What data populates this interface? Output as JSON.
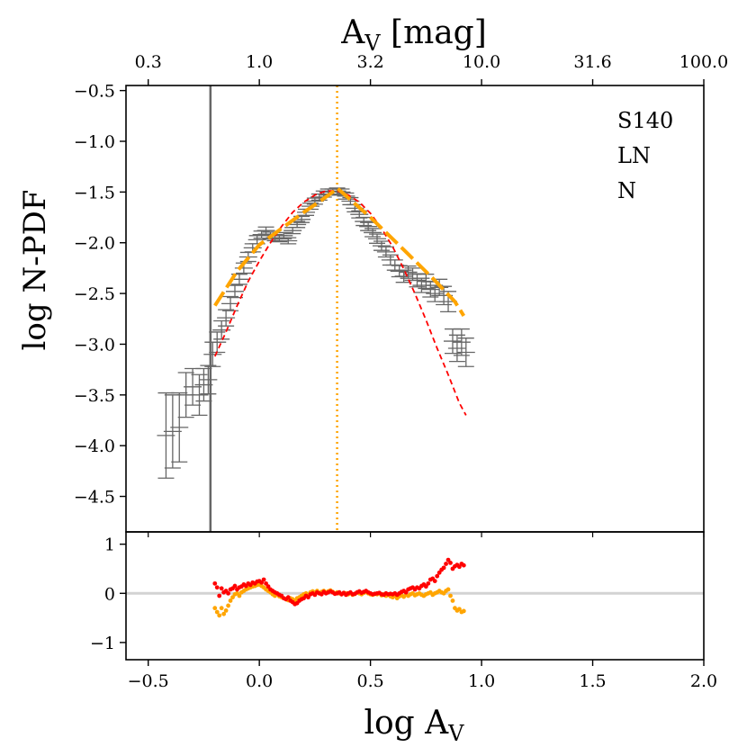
{
  "chart_data": {
    "type": "scatter",
    "top_axis": {
      "label": "A",
      "label_sub": "V",
      "label_suffix": " [mag]",
      "tick_labels": [
        "0.3",
        "1.0",
        "3.2",
        "10.0",
        "31.6",
        "100.0"
      ],
      "tick_values_log": [
        -0.5,
        0.0,
        0.5,
        1.0,
        1.5,
        2.0
      ]
    },
    "main_panel": {
      "ylabel": "log N-PDF",
      "ylim": [
        -4.85,
        -0.45
      ],
      "yticks": [
        -0.5,
        -1.0,
        -1.5,
        -2.0,
        -2.5,
        -3.0,
        -3.5,
        -4.0,
        -4.5
      ],
      "ytick_labels": [
        "−0.5",
        "−1.0",
        "−1.5",
        "−2.0",
        "−2.5",
        "−3.0",
        "−3.5",
        "−4.0",
        "−4.5"
      ],
      "annotations": [
        "S140",
        "LN",
        "N"
      ],
      "vline_completeness": -0.22,
      "vline_peak": 0.35,
      "colors": {
        "data": "#666666",
        "lognormal": "#ff0000",
        "powerlaw": "#ffa500"
      },
      "data_points": [
        [
          -0.42,
          -3.9,
          0.42
        ],
        [
          -0.39,
          -3.86,
          0.36
        ],
        [
          -0.36,
          -3.82,
          0.34
        ],
        [
          -0.33,
          -3.5,
          0.22
        ],
        [
          -0.3,
          -3.42,
          0.18
        ],
        [
          -0.27,
          -3.5,
          0.2
        ],
        [
          -0.25,
          -3.4,
          0.16
        ],
        [
          -0.23,
          -3.35,
          0.14
        ],
        [
          -0.21,
          -3.1,
          0.12
        ],
        [
          -0.19,
          -2.98,
          0.1
        ],
        [
          -0.17,
          -2.86,
          0.09
        ],
        [
          -0.15,
          -2.74,
          0.08
        ],
        [
          -0.13,
          -2.6,
          0.07
        ],
        [
          -0.11,
          -2.48,
          0.06
        ],
        [
          -0.09,
          -2.36,
          0.05
        ],
        [
          -0.07,
          -2.25,
          0.05
        ],
        [
          -0.05,
          -2.14,
          0.045
        ],
        [
          -0.03,
          -2.05,
          0.04
        ],
        [
          -0.01,
          -1.97,
          0.04
        ],
        [
          0.01,
          -1.92,
          0.035
        ],
        [
          0.03,
          -1.88,
          0.035
        ],
        [
          0.05,
          -1.93,
          0.035
        ],
        [
          0.07,
          -1.95,
          0.03
        ],
        [
          0.09,
          -1.96,
          0.03
        ],
        [
          0.11,
          -1.93,
          0.03
        ],
        [
          0.13,
          -1.98,
          0.03
        ],
        [
          0.15,
          -1.88,
          0.03
        ],
        [
          0.17,
          -1.82,
          0.03
        ],
        [
          0.19,
          -1.77,
          0.03
        ],
        [
          0.21,
          -1.7,
          0.03
        ],
        [
          0.23,
          -1.64,
          0.03
        ],
        [
          0.25,
          -1.59,
          0.03
        ],
        [
          0.27,
          -1.55,
          0.03
        ],
        [
          0.29,
          -1.52,
          0.03
        ],
        [
          0.31,
          -1.5,
          0.03
        ],
        [
          0.33,
          -1.5,
          0.03
        ],
        [
          0.35,
          -1.49,
          0.03
        ],
        [
          0.37,
          -1.5,
          0.03
        ],
        [
          0.39,
          -1.54,
          0.03
        ],
        [
          0.41,
          -1.59,
          0.035
        ],
        [
          0.43,
          -1.66,
          0.035
        ],
        [
          0.45,
          -1.72,
          0.035
        ],
        [
          0.47,
          -1.79,
          0.04
        ],
        [
          0.49,
          -1.84,
          0.04
        ],
        [
          0.51,
          -1.9,
          0.04
        ],
        [
          0.53,
          -1.96,
          0.045
        ],
        [
          0.55,
          -2.03,
          0.045
        ],
        [
          0.57,
          -2.09,
          0.05
        ],
        [
          0.59,
          -2.17,
          0.05
        ],
        [
          0.61,
          -2.22,
          0.05
        ],
        [
          0.63,
          -2.28,
          0.055
        ],
        [
          0.65,
          -2.33,
          0.06
        ],
        [
          0.67,
          -2.29,
          0.06
        ],
        [
          0.69,
          -2.31,
          0.06
        ],
        [
          0.71,
          -2.37,
          0.065
        ],
        [
          0.73,
          -2.42,
          0.07
        ],
        [
          0.75,
          -2.38,
          0.07
        ],
        [
          0.77,
          -2.46,
          0.075
        ],
        [
          0.79,
          -2.5,
          0.08
        ],
        [
          0.81,
          -2.44,
          0.08
        ],
        [
          0.83,
          -2.52,
          0.09
        ],
        [
          0.85,
          -2.58,
          0.1
        ],
        [
          0.87,
          -2.97,
          0.12
        ],
        [
          0.89,
          -3.04,
          0.13
        ],
        [
          0.91,
          -2.98,
          0.13
        ],
        [
          0.93,
          -3.08,
          0.14
        ]
      ],
      "lognormal_fit": {
        "x": [
          -0.2,
          -0.15,
          -0.1,
          -0.05,
          0.0,
          0.05,
          0.1,
          0.15,
          0.2,
          0.25,
          0.3,
          0.35,
          0.4,
          0.45,
          0.5,
          0.55,
          0.6,
          0.65,
          0.7,
          0.75,
          0.8,
          0.85,
          0.9,
          0.93
        ],
        "y": [
          -3.12,
          -2.88,
          -2.62,
          -2.38,
          -2.18,
          -2.0,
          -1.84,
          -1.7,
          -1.6,
          -1.53,
          -1.49,
          -1.49,
          -1.53,
          -1.6,
          -1.71,
          -1.86,
          -2.04,
          -2.26,
          -2.5,
          -2.76,
          -3.04,
          -3.3,
          -3.58,
          -3.7
        ]
      },
      "powerlaw_fit": {
        "x": [
          -0.2,
          -0.1,
          0.0,
          0.1,
          0.2,
          0.28,
          0.33,
          0.35,
          0.5,
          0.65,
          0.78,
          0.88,
          0.92
        ],
        "y": [
          -2.62,
          -2.28,
          -2.02,
          -1.86,
          -1.7,
          -1.58,
          -1.5,
          -1.46,
          -1.75,
          -2.07,
          -2.35,
          -2.58,
          -2.72
        ]
      }
    },
    "residual_panel": {
      "ylim": [
        -1.35,
        1.25
      ],
      "yticks": [
        1,
        0,
        -1
      ],
      "ytick_labels": [
        "1",
        "0",
        "−1"
      ],
      "lognormal_residuals": [
        [
          -0.2,
          0.2
        ],
        [
          -0.19,
          0.12
        ],
        [
          -0.18,
          -0.05
        ],
        [
          -0.17,
          0.1
        ],
        [
          -0.16,
          0.02
        ],
        [
          -0.15,
          0.05
        ],
        [
          -0.14,
          0.0
        ],
        [
          -0.13,
          0.08
        ],
        [
          -0.12,
          0.1
        ],
        [
          -0.11,
          0.15
        ],
        [
          -0.1,
          0.08
        ],
        [
          -0.09,
          0.12
        ],
        [
          -0.08,
          0.14
        ],
        [
          -0.07,
          0.18
        ],
        [
          -0.06,
          0.15
        ],
        [
          -0.05,
          0.2
        ],
        [
          -0.04,
          0.17
        ],
        [
          -0.03,
          0.22
        ],
        [
          -0.02,
          0.2
        ],
        [
          -0.01,
          0.24
        ],
        [
          0.0,
          0.25
        ],
        [
          0.01,
          0.22
        ],
        [
          0.02,
          0.28
        ],
        [
          0.03,
          0.2
        ],
        [
          0.04,
          0.14
        ],
        [
          0.05,
          0.08
        ],
        [
          0.06,
          0.05
        ],
        [
          0.07,
          0.02
        ],
        [
          0.08,
          0.0
        ],
        [
          0.09,
          -0.03
        ],
        [
          0.1,
          -0.05
        ],
        [
          0.11,
          -0.1
        ],
        [
          0.12,
          -0.12
        ],
        [
          0.13,
          -0.08
        ],
        [
          0.14,
          -0.15
        ],
        [
          0.15,
          -0.18
        ],
        [
          0.16,
          -0.22
        ],
        [
          0.17,
          -0.2
        ],
        [
          0.18,
          -0.15
        ],
        [
          0.19,
          -0.12
        ],
        [
          0.2,
          -0.1
        ],
        [
          0.21,
          -0.05
        ],
        [
          0.22,
          -0.08
        ],
        [
          0.23,
          -0.02
        ],
        [
          0.24,
          0.0
        ],
        [
          0.25,
          -0.03
        ],
        [
          0.26,
          0.02
        ],
        [
          0.27,
          0.0
        ],
        [
          0.28,
          -0.02
        ],
        [
          0.29,
          0.03
        ],
        [
          0.3,
          0.0
        ],
        [
          0.31,
          0.02
        ],
        [
          0.32,
          0.04
        ],
        [
          0.33,
          0.02
        ],
        [
          0.34,
          -0.01
        ],
        [
          0.35,
          0.0
        ],
        [
          0.36,
          0.02
        ],
        [
          0.37,
          -0.02
        ],
        [
          0.38,
          0.01
        ],
        [
          0.39,
          -0.03
        ],
        [
          0.4,
          0.0
        ],
        [
          0.41,
          0.02
        ],
        [
          0.42,
          -0.02
        ],
        [
          0.43,
          -0.01
        ],
        [
          0.44,
          0.02
        ],
        [
          0.45,
          0.04
        ],
        [
          0.46,
          0.01
        ],
        [
          0.47,
          0.03
        ],
        [
          0.48,
          0.05
        ],
        [
          0.49,
          0.02
        ],
        [
          0.5,
          0.0
        ],
        [
          0.51,
          -0.02
        ],
        [
          0.52,
          -0.01
        ],
        [
          0.53,
          0.0
        ],
        [
          0.54,
          0.01
        ],
        [
          0.55,
          -0.02
        ],
        [
          0.56,
          -0.03
        ],
        [
          0.57,
          0.0
        ],
        [
          0.58,
          -0.02
        ],
        [
          0.59,
          -0.01
        ],
        [
          0.6,
          -0.02
        ],
        [
          0.61,
          0.0
        ],
        [
          0.62,
          -0.03
        ],
        [
          0.63,
          0.0
        ],
        [
          0.64,
          0.03
        ],
        [
          0.65,
          0.05
        ],
        [
          0.66,
          0.02
        ],
        [
          0.67,
          0.08
        ],
        [
          0.68,
          0.1
        ],
        [
          0.69,
          0.12
        ],
        [
          0.7,
          0.08
        ],
        [
          0.71,
          0.12
        ],
        [
          0.72,
          0.1
        ],
        [
          0.73,
          0.15
        ],
        [
          0.74,
          0.18
        ],
        [
          0.75,
          0.14
        ],
        [
          0.76,
          0.2
        ],
        [
          0.77,
          0.28
        ],
        [
          0.78,
          0.3
        ],
        [
          0.79,
          0.25
        ],
        [
          0.8,
          0.35
        ],
        [
          0.81,
          0.42
        ],
        [
          0.82,
          0.48
        ],
        [
          0.83,
          0.52
        ],
        [
          0.84,
          0.6
        ],
        [
          0.85,
          0.68
        ],
        [
          0.86,
          0.62
        ],
        [
          0.87,
          0.5
        ],
        [
          0.88,
          0.55
        ],
        [
          0.89,
          0.58
        ],
        [
          0.9,
          0.54
        ],
        [
          0.91,
          0.6
        ],
        [
          0.92,
          0.57
        ]
      ],
      "powerlaw_residuals": [
        [
          -0.2,
          -0.3
        ],
        [
          -0.19,
          -0.38
        ],
        [
          -0.18,
          -0.45
        ],
        [
          -0.17,
          -0.3
        ],
        [
          -0.16,
          -0.42
        ],
        [
          -0.15,
          -0.35
        ],
        [
          -0.14,
          -0.25
        ],
        [
          -0.13,
          -0.15
        ],
        [
          -0.12,
          -0.08
        ],
        [
          -0.11,
          -0.02
        ],
        [
          -0.1,
          0.0
        ],
        [
          -0.09,
          -0.05
        ],
        [
          -0.08,
          0.02
        ],
        [
          -0.07,
          0.05
        ],
        [
          -0.06,
          0.08
        ],
        [
          -0.05,
          0.1
        ],
        [
          -0.04,
          0.12
        ],
        [
          -0.03,
          0.14
        ],
        [
          -0.02,
          0.15
        ],
        [
          -0.01,
          0.17
        ],
        [
          0.0,
          0.18
        ],
        [
          0.01,
          0.15
        ],
        [
          0.02,
          0.12
        ],
        [
          0.03,
          0.08
        ],
        [
          0.04,
          0.05
        ],
        [
          0.05,
          0.02
        ],
        [
          0.06,
          -0.02
        ],
        [
          0.07,
          -0.05
        ],
        [
          0.08,
          -0.02
        ],
        [
          0.09,
          -0.06
        ],
        [
          0.1,
          -0.08
        ],
        [
          0.11,
          -0.1
        ],
        [
          0.12,
          -0.12
        ],
        [
          0.13,
          -0.14
        ],
        [
          0.14,
          -0.1
        ],
        [
          0.15,
          -0.12
        ],
        [
          0.16,
          -0.15
        ],
        [
          0.17,
          -0.1
        ],
        [
          0.18,
          -0.08
        ],
        [
          0.19,
          -0.05
        ],
        [
          0.2,
          -0.02
        ],
        [
          0.21,
          0.0
        ],
        [
          0.22,
          -0.04
        ],
        [
          0.23,
          0.02
        ],
        [
          0.24,
          0.04
        ],
        [
          0.25,
          0.02
        ],
        [
          0.26,
          0.05
        ],
        [
          0.27,
          0.0
        ],
        [
          0.28,
          0.03
        ],
        [
          0.29,
          0.05
        ],
        [
          0.3,
          0.02
        ],
        [
          0.31,
          0.04
        ],
        [
          0.32,
          0.06
        ],
        [
          0.33,
          0.03
        ],
        [
          0.34,
          0.0
        ],
        [
          0.35,
          0.02
        ],
        [
          0.36,
          0.0
        ],
        [
          0.37,
          -0.02
        ],
        [
          0.38,
          0.01
        ],
        [
          0.39,
          0.0
        ],
        [
          0.4,
          -0.02
        ],
        [
          0.41,
          0.0
        ],
        [
          0.42,
          -0.03
        ],
        [
          0.43,
          -0.01
        ],
        [
          0.44,
          0.02
        ],
        [
          0.45,
          0.0
        ],
        [
          0.46,
          -0.02
        ],
        [
          0.47,
          0.01
        ],
        [
          0.48,
          0.03
        ],
        [
          0.49,
          0.0
        ],
        [
          0.5,
          -0.02
        ],
        [
          0.51,
          -0.03
        ],
        [
          0.52,
          -0.01
        ],
        [
          0.53,
          -0.02
        ],
        [
          0.54,
          0.0
        ],
        [
          0.55,
          -0.04
        ],
        [
          0.56,
          -0.02
        ],
        [
          0.57,
          -0.05
        ],
        [
          0.58,
          -0.03
        ],
        [
          0.59,
          -0.06
        ],
        [
          0.6,
          -0.08
        ],
        [
          0.61,
          -0.05
        ],
        [
          0.62,
          -0.1
        ],
        [
          0.63,
          -0.06
        ],
        [
          0.64,
          -0.04
        ],
        [
          0.65,
          -0.07
        ],
        [
          0.66,
          -0.03
        ],
        [
          0.67,
          -0.05
        ],
        [
          0.68,
          -0.02
        ],
        [
          0.69,
          0.0
        ],
        [
          0.7,
          -0.04
        ],
        [
          0.71,
          -0.02
        ],
        [
          0.72,
          0.0
        ],
        [
          0.73,
          -0.03
        ],
        [
          0.74,
          -0.05
        ],
        [
          0.75,
          -0.02
        ],
        [
          0.76,
          0.0
        ],
        [
          0.77,
          0.02
        ],
        [
          0.78,
          -0.03
        ],
        [
          0.79,
          0.0
        ],
        [
          0.8,
          0.02
        ],
        [
          0.81,
          0.05
        ],
        [
          0.82,
          0.02
        ],
        [
          0.83,
          0.0
        ],
        [
          0.84,
          0.05
        ],
        [
          0.85,
          0.08
        ],
        [
          0.86,
          -0.05
        ],
        [
          0.87,
          -0.15
        ],
        [
          0.88,
          -0.3
        ],
        [
          0.89,
          -0.35
        ],
        [
          0.9,
          -0.32
        ],
        [
          0.91,
          -0.38
        ],
        [
          0.92,
          -0.36
        ]
      ]
    },
    "bottom_axis": {
      "label": "log A",
      "label_sub": "V",
      "xlim": [
        -0.6,
        2.0
      ],
      "xticks": [
        -0.5,
        0.0,
        0.5,
        1.0,
        1.5,
        2.0
      ],
      "xtick_labels": [
        "−0.5",
        "0.0",
        "0.5",
        "1.0",
        "1.5",
        "2.0"
      ]
    }
  }
}
